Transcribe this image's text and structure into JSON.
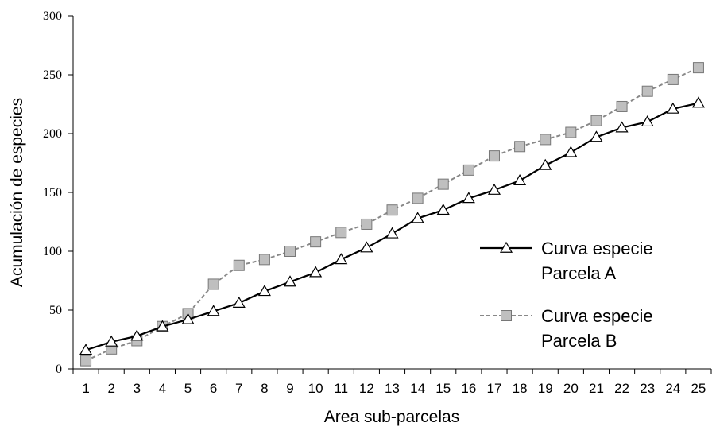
{
  "chart_data": {
    "type": "line",
    "title": "",
    "xlabel": "Area sub-parcelas",
    "ylabel": "Acumulación de especies",
    "categories": [
      "1",
      "2",
      "3",
      "4",
      "5",
      "6",
      "7",
      "8",
      "9",
      "10",
      "11",
      "12",
      "13",
      "14",
      "15",
      "16",
      "17",
      "18",
      "19",
      "20",
      "21",
      "22",
      "23",
      "24",
      "25"
    ],
    "ylim": [
      0,
      300
    ],
    "yticks": [
      "0",
      "50",
      "100",
      "150",
      "200",
      "250",
      "300"
    ],
    "grid": false,
    "legend_position": "right",
    "series": [
      {
        "name": "Curva especie Parcela A",
        "legend_lines": [
          "Curva especie",
          "Parcela A"
        ],
        "color": "#000000",
        "line_style": "solid",
        "marker": "triangle",
        "marker_fill": "#ffffff",
        "values": [
          16,
          23,
          28,
          36,
          42,
          49,
          56,
          66,
          74,
          82,
          93,
          103,
          115,
          128,
          135,
          145,
          152,
          160,
          173,
          184,
          197,
          205,
          210,
          221,
          226
        ]
      },
      {
        "name": "Curva especie Parcela B",
        "legend_lines": [
          "Curva especie",
          "Parcela B"
        ],
        "color": "#888888",
        "line_style": "dashed",
        "marker": "square",
        "marker_fill": "#bfbfbf",
        "values": [
          7,
          17,
          24,
          36,
          47,
          72,
          88,
          93,
          100,
          108,
          116,
          123,
          135,
          145,
          157,
          169,
          181,
          189,
          195,
          201,
          211,
          223,
          236,
          246,
          256
        ]
      }
    ]
  }
}
